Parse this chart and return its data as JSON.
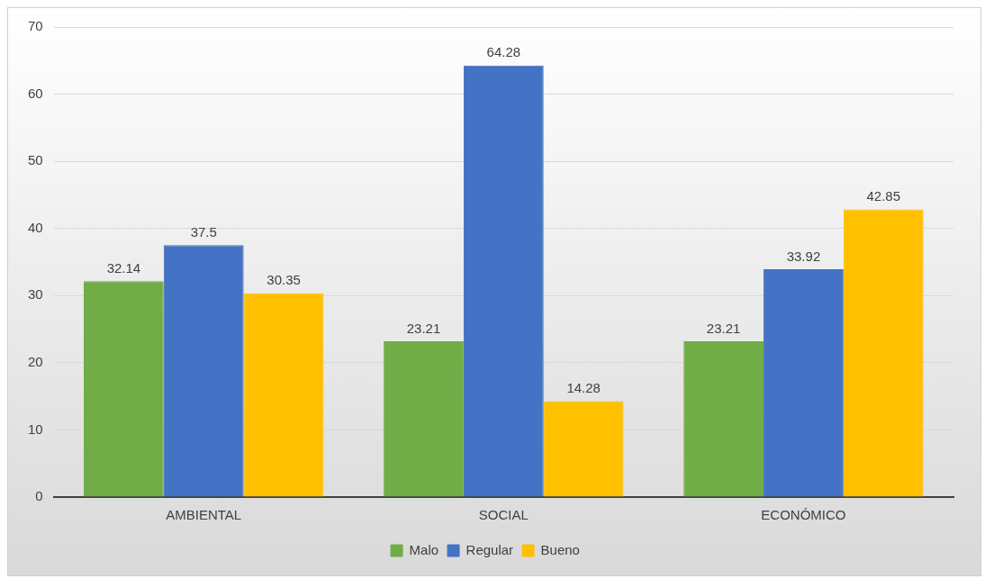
{
  "chart_data": {
    "type": "bar",
    "categories": [
      "AMBIENTAL",
      "SOCIAL",
      "ECONÓMICO"
    ],
    "series": [
      {
        "name": "Malo",
        "color": "#70ad47",
        "values": [
          32.14,
          23.21,
          23.21
        ]
      },
      {
        "name": "Regular",
        "color": "#4472c4",
        "values": [
          37.5,
          64.28,
          33.92
        ]
      },
      {
        "name": "Bueno",
        "color": "#ffc000",
        "values": [
          30.35,
          14.28,
          42.85
        ]
      }
    ],
    "ylim": [
      0,
      70
    ],
    "yticks": [
      0,
      10,
      20,
      30,
      40,
      50,
      60,
      70
    ],
    "grid": "y",
    "legend": "bottom",
    "data_labels": true
  }
}
